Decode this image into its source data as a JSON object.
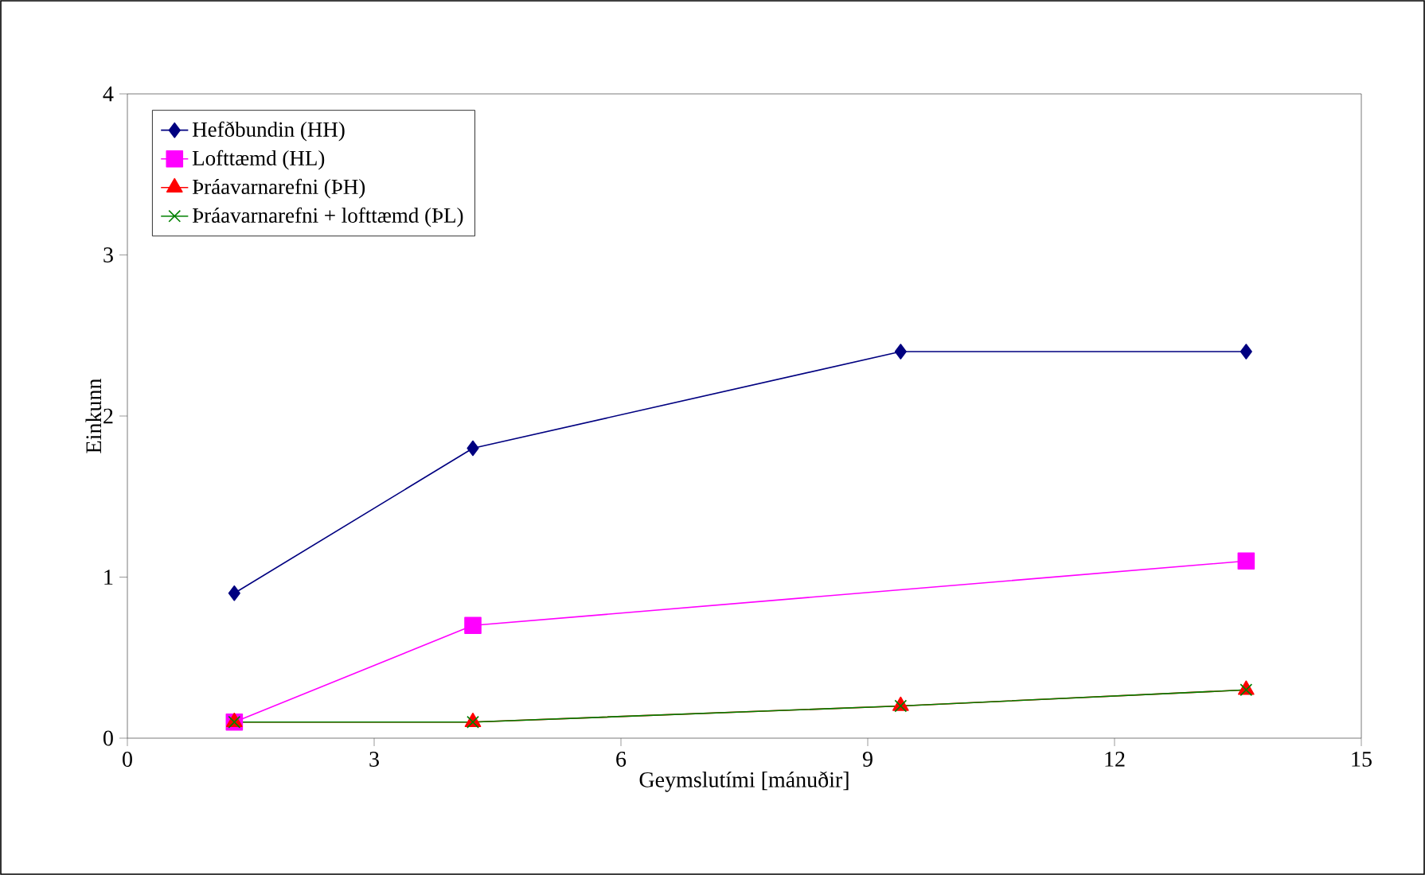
{
  "chart_data": {
    "type": "line",
    "xlabel": "Geymslutími [mánuðir]",
    "ylabel": "Einkunn",
    "xlim": [
      0,
      15
    ],
    "xticks": [
      0,
      3,
      6,
      9,
      12,
      15
    ],
    "ylim": [
      0,
      4
    ],
    "yticks": [
      0,
      1,
      2,
      3,
      4
    ],
    "grid": false,
    "legend": "top left",
    "line_style": "solid",
    "series": [
      {
        "name": "Hefðbundin (HH)",
        "color": "#000080",
        "marker": "diamond",
        "x": [
          1.3,
          4.2,
          9.4,
          13.6
        ],
        "values": [
          0.9,
          1.8,
          2.4,
          2.4
        ]
      },
      {
        "name": "Lofttæmd (HL)",
        "color": "#ff00ff",
        "marker": "square",
        "x": [
          1.3,
          4.2,
          13.6
        ],
        "values": [
          0.1,
          0.7,
          1.1
        ]
      },
      {
        "name": "Þráavarnarefni (ÞH)",
        "color": "#ff0000",
        "marker": "triangle",
        "x": [
          1.3,
          4.2,
          9.4,
          13.6
        ],
        "values": [
          0.1,
          0.1,
          0.2,
          0.3
        ]
      },
      {
        "name": "Þráavarnarefni + lofttæmd (ÞL)",
        "color": "#008000",
        "marker": "cross",
        "x": [
          1.3,
          4.2,
          9.4,
          13.6
        ],
        "values": [
          0.1,
          0.1,
          0.2,
          0.3
        ]
      }
    ]
  }
}
